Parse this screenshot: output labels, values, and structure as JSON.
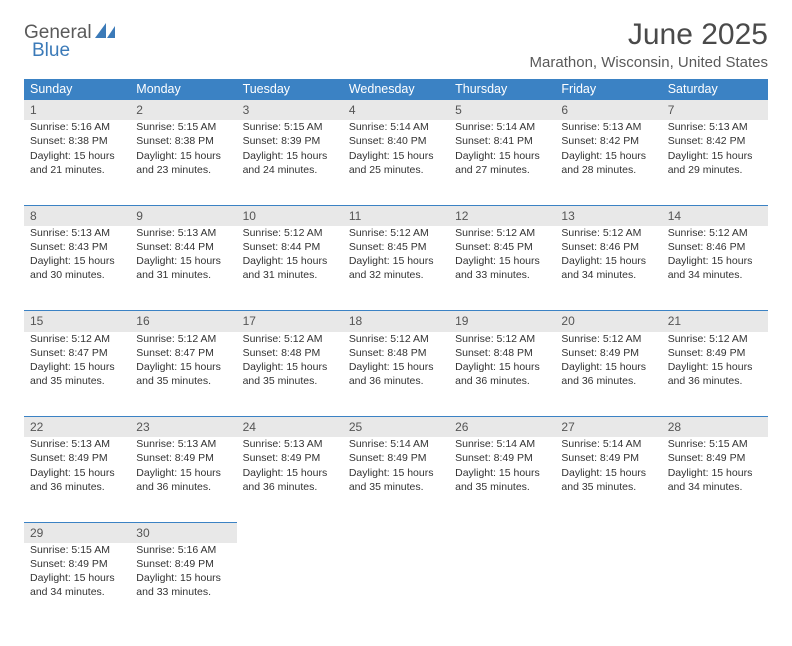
{
  "brand": {
    "word1": "General",
    "word2": "Blue",
    "text_color1": "#5a5a5a",
    "text_color2": "#3b7ab8",
    "icon_color": "#3b7ab8"
  },
  "title": "June 2025",
  "location": "Marathon, Wisconsin, United States",
  "header_bg": "#3b82c4",
  "header_fg": "#ffffff",
  "daynum_bg": "#e8e8e8",
  "rule_color": "#3b82c4",
  "columns": [
    "Sunday",
    "Monday",
    "Tuesday",
    "Wednesday",
    "Thursday",
    "Friday",
    "Saturday"
  ],
  "weeks": [
    [
      {
        "n": "1",
        "sunrise": "5:16 AM",
        "sunset": "8:38 PM",
        "daylight": "15 hours and 21 minutes."
      },
      {
        "n": "2",
        "sunrise": "5:15 AM",
        "sunset": "8:38 PM",
        "daylight": "15 hours and 23 minutes."
      },
      {
        "n": "3",
        "sunrise": "5:15 AM",
        "sunset": "8:39 PM",
        "daylight": "15 hours and 24 minutes."
      },
      {
        "n": "4",
        "sunrise": "5:14 AM",
        "sunset": "8:40 PM",
        "daylight": "15 hours and 25 minutes."
      },
      {
        "n": "5",
        "sunrise": "5:14 AM",
        "sunset": "8:41 PM",
        "daylight": "15 hours and 27 minutes."
      },
      {
        "n": "6",
        "sunrise": "5:13 AM",
        "sunset": "8:42 PM",
        "daylight": "15 hours and 28 minutes."
      },
      {
        "n": "7",
        "sunrise": "5:13 AM",
        "sunset": "8:42 PM",
        "daylight": "15 hours and 29 minutes."
      }
    ],
    [
      {
        "n": "8",
        "sunrise": "5:13 AM",
        "sunset": "8:43 PM",
        "daylight": "15 hours and 30 minutes."
      },
      {
        "n": "9",
        "sunrise": "5:13 AM",
        "sunset": "8:44 PM",
        "daylight": "15 hours and 31 minutes."
      },
      {
        "n": "10",
        "sunrise": "5:12 AM",
        "sunset": "8:44 PM",
        "daylight": "15 hours and 31 minutes."
      },
      {
        "n": "11",
        "sunrise": "5:12 AM",
        "sunset": "8:45 PM",
        "daylight": "15 hours and 32 minutes."
      },
      {
        "n": "12",
        "sunrise": "5:12 AM",
        "sunset": "8:45 PM",
        "daylight": "15 hours and 33 minutes."
      },
      {
        "n": "13",
        "sunrise": "5:12 AM",
        "sunset": "8:46 PM",
        "daylight": "15 hours and 34 minutes."
      },
      {
        "n": "14",
        "sunrise": "5:12 AM",
        "sunset": "8:46 PM",
        "daylight": "15 hours and 34 minutes."
      }
    ],
    [
      {
        "n": "15",
        "sunrise": "5:12 AM",
        "sunset": "8:47 PM",
        "daylight": "15 hours and 35 minutes."
      },
      {
        "n": "16",
        "sunrise": "5:12 AM",
        "sunset": "8:47 PM",
        "daylight": "15 hours and 35 minutes."
      },
      {
        "n": "17",
        "sunrise": "5:12 AM",
        "sunset": "8:48 PM",
        "daylight": "15 hours and 35 minutes."
      },
      {
        "n": "18",
        "sunrise": "5:12 AM",
        "sunset": "8:48 PM",
        "daylight": "15 hours and 36 minutes."
      },
      {
        "n": "19",
        "sunrise": "5:12 AM",
        "sunset": "8:48 PM",
        "daylight": "15 hours and 36 minutes."
      },
      {
        "n": "20",
        "sunrise": "5:12 AM",
        "sunset": "8:49 PM",
        "daylight": "15 hours and 36 minutes."
      },
      {
        "n": "21",
        "sunrise": "5:12 AM",
        "sunset": "8:49 PM",
        "daylight": "15 hours and 36 minutes."
      }
    ],
    [
      {
        "n": "22",
        "sunrise": "5:13 AM",
        "sunset": "8:49 PM",
        "daylight": "15 hours and 36 minutes."
      },
      {
        "n": "23",
        "sunrise": "5:13 AM",
        "sunset": "8:49 PM",
        "daylight": "15 hours and 36 minutes."
      },
      {
        "n": "24",
        "sunrise": "5:13 AM",
        "sunset": "8:49 PM",
        "daylight": "15 hours and 36 minutes."
      },
      {
        "n": "25",
        "sunrise": "5:14 AM",
        "sunset": "8:49 PM",
        "daylight": "15 hours and 35 minutes."
      },
      {
        "n": "26",
        "sunrise": "5:14 AM",
        "sunset": "8:49 PM",
        "daylight": "15 hours and 35 minutes."
      },
      {
        "n": "27",
        "sunrise": "5:14 AM",
        "sunset": "8:49 PM",
        "daylight": "15 hours and 35 minutes."
      },
      {
        "n": "28",
        "sunrise": "5:15 AM",
        "sunset": "8:49 PM",
        "daylight": "15 hours and 34 minutes."
      }
    ],
    [
      {
        "n": "29",
        "sunrise": "5:15 AM",
        "sunset": "8:49 PM",
        "daylight": "15 hours and 34 minutes."
      },
      {
        "n": "30",
        "sunrise": "5:16 AM",
        "sunset": "8:49 PM",
        "daylight": "15 hours and 33 minutes."
      },
      null,
      null,
      null,
      null,
      null
    ]
  ],
  "labels": {
    "sunrise": "Sunrise:",
    "sunset": "Sunset:",
    "daylight": "Daylight:"
  }
}
